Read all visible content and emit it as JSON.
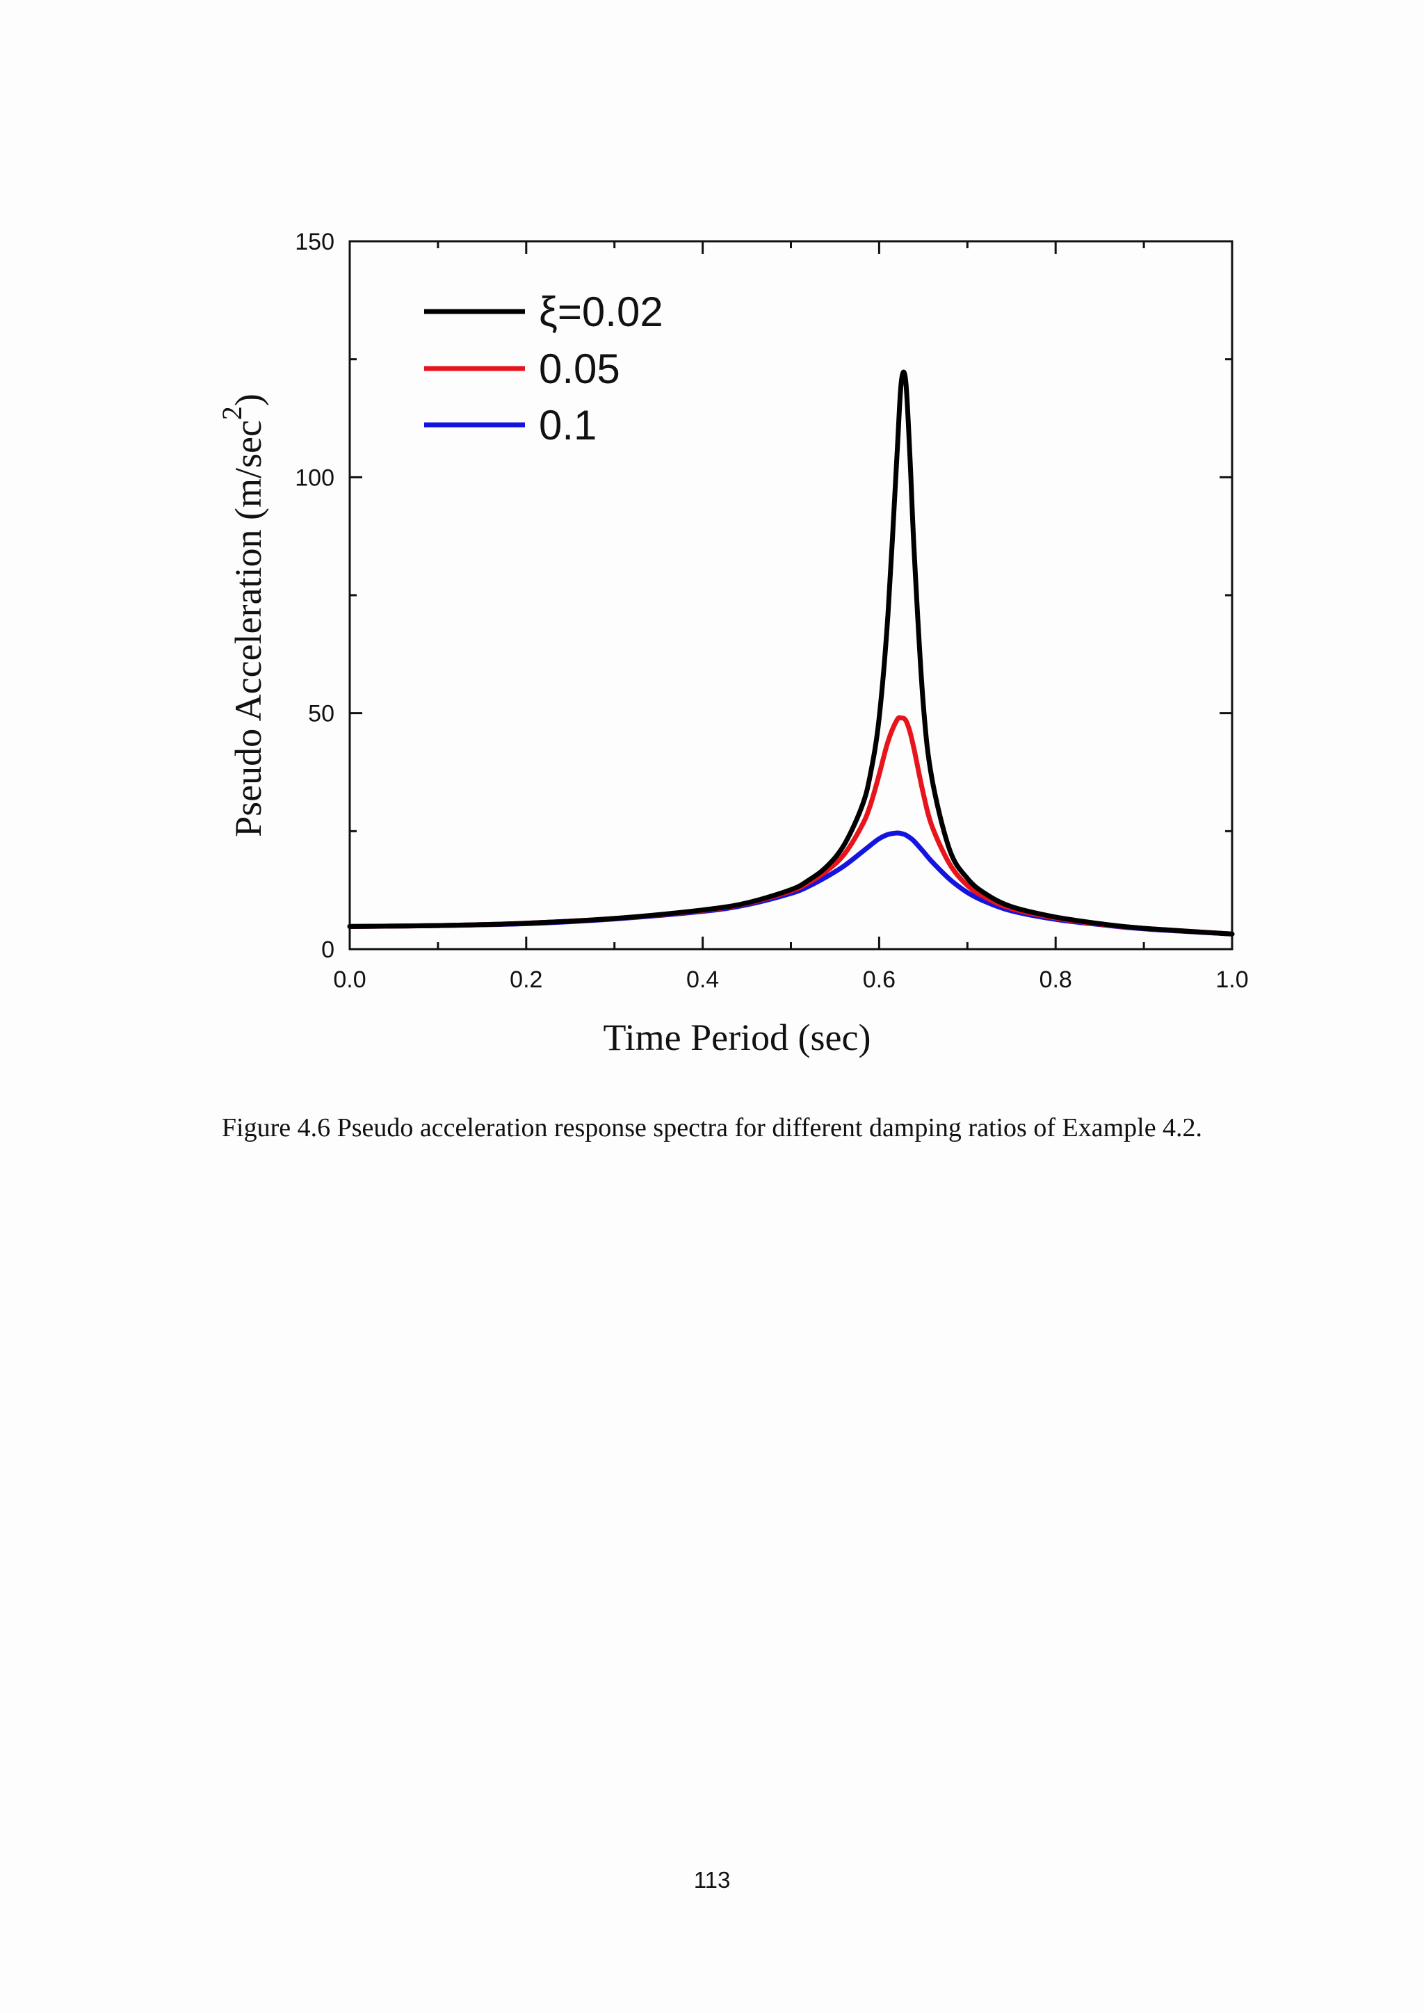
{
  "chart_data": {
    "type": "line",
    "xlabel": "Time Period (sec)",
    "ylabel": "Pseudo Acceleration (m/sec",
    "ylabel_superscript": "2",
    "ylabel_suffix": ")",
    "xlim": [
      0.0,
      1.0
    ],
    "ylim": [
      0,
      150
    ],
    "x_ticks": [
      0.0,
      0.2,
      0.4,
      0.6,
      0.8,
      1.0
    ],
    "x_tick_labels": [
      "0.0",
      "0.2",
      "0.4",
      "0.6",
      "0.8",
      "1.0"
    ],
    "y_ticks": [
      0,
      50,
      100,
      150
    ],
    "y_tick_labels": [
      "0",
      "50",
      "100",
      "150"
    ],
    "grid": false,
    "legend_position": "top-left",
    "legend_labels": [
      "ξ=0.02",
      "0.05",
      "0.1"
    ],
    "x": [
      0.0,
      0.1,
      0.2,
      0.3,
      0.4,
      0.45,
      0.5,
      0.52,
      0.54,
      0.56,
      0.58,
      0.59,
      0.6,
      0.61,
      0.62,
      0.625,
      0.63,
      0.635,
      0.64,
      0.65,
      0.66,
      0.68,
      0.7,
      0.72,
      0.75,
      0.8,
      0.85,
      0.9,
      1.0
    ],
    "series": [
      {
        "color": "#000000",
        "values": [
          4.8,
          5.0,
          5.5,
          6.5,
          8.3,
          9.8,
          12.6,
          14.6,
          17.4,
          22.0,
          30.0,
          37.0,
          49.0,
          71.0,
          104.0,
          120.0,
          120.5,
          104.0,
          83.0,
          52.0,
          36.0,
          21.0,
          15.0,
          11.8,
          9.0,
          6.8,
          5.4,
          4.4,
          3.2
        ]
      },
      {
        "color": "#e8141c",
        "values": [
          4.8,
          5.0,
          5.5,
          6.5,
          8.2,
          9.7,
          12.3,
          14.1,
          16.5,
          20.0,
          26.0,
          30.5,
          37.0,
          44.0,
          48.5,
          49.0,
          48.5,
          46.0,
          42.0,
          33.0,
          26.0,
          18.0,
          13.5,
          11.0,
          8.6,
          6.6,
          5.3,
          4.4,
          3.2
        ]
      },
      {
        "color": "#1414e0",
        "values": [
          4.8,
          5.0,
          5.4,
          6.4,
          8.0,
          9.4,
          11.8,
          13.3,
          15.3,
          17.6,
          20.5,
          22.0,
          23.4,
          24.3,
          24.6,
          24.5,
          24.2,
          23.6,
          22.8,
          20.7,
          18.5,
          14.8,
          12.0,
          10.1,
          8.1,
          6.3,
          5.2,
          4.3,
          3.2
        ]
      }
    ]
  },
  "caption": "Figure 4.6 Pseudo acceleration response spectra for different damping ratios of Example 4.2.",
  "page_number": "113"
}
